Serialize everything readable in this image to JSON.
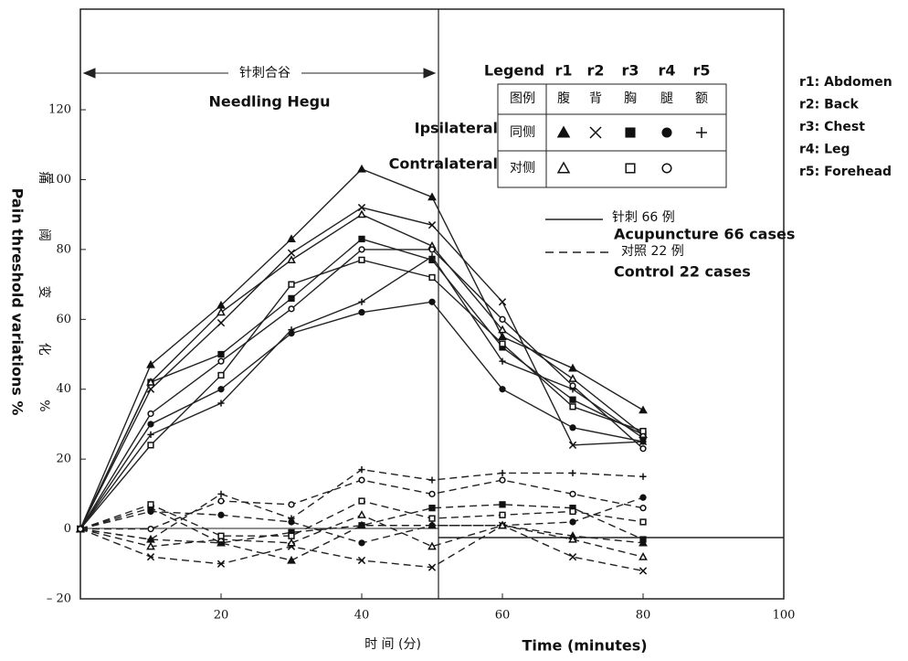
{
  "chart_data": {
    "type": "line",
    "y_label": "Pain threshold variations %",
    "y_label_cn": "痛 阈 变 化 %",
    "x_label": "Time (minutes)",
    "x_label_cn": "时  间  (分)",
    "annotations": {
      "needling_cn": "针刺合谷",
      "needling": "Needling Hegu"
    },
    "xlim": [
      0,
      100
    ],
    "xticks": [
      20,
      40,
      60,
      80,
      100
    ],
    "ylim": [
      -20,
      148.8
    ],
    "yticks": [
      {
        "value": -20,
        "label": "– 20"
      },
      0,
      20,
      40,
      60,
      80,
      100,
      120
    ],
    "x": [
      0,
      10,
      20,
      30,
      40,
      50,
      60,
      70,
      80
    ],
    "series": [
      {
        "group": "acupuncture",
        "marker": "tri-filled",
        "values": [
          0,
          47,
          64,
          83,
          103,
          95,
          55,
          46,
          34
        ]
      },
      {
        "group": "acupuncture",
        "marker": "x",
        "values": [
          0,
          40,
          59,
          79,
          92,
          87,
          65,
          24,
          25
        ]
      },
      {
        "group": "acupuncture",
        "marker": "square-filled",
        "values": [
          0,
          42,
          50,
          66,
          83,
          77,
          52,
          37,
          27
        ]
      },
      {
        "group": "acupuncture",
        "marker": "dot-filled",
        "values": [
          0,
          30,
          40,
          56,
          62,
          65,
          40,
          29,
          25
        ]
      },
      {
        "group": "acupuncture",
        "marker": "plus",
        "values": [
          0,
          27,
          36,
          57,
          65,
          78,
          48,
          40,
          26
        ]
      },
      {
        "group": "acupuncture",
        "marker": "tri-open",
        "values": [
          0,
          42,
          62,
          77,
          90,
          81,
          57,
          43,
          27
        ]
      },
      {
        "group": "acupuncture",
        "marker": "square-open",
        "values": [
          0,
          24,
          44,
          70,
          77,
          72,
          53,
          35,
          28
        ]
      },
      {
        "group": "acupuncture",
        "marker": "dot-open",
        "values": [
          0,
          33,
          48,
          63,
          80,
          80,
          60,
          41,
          23
        ]
      },
      {
        "group": "control",
        "marker": "tri-filled",
        "values": [
          0,
          -3,
          -4,
          -9,
          1,
          1,
          1,
          -2,
          -4
        ]
      },
      {
        "group": "control",
        "marker": "x",
        "values": [
          0,
          -8,
          -10,
          -5,
          -9,
          -11,
          1,
          -8,
          -12
        ]
      },
      {
        "group": "control",
        "marker": "square-filled",
        "values": [
          0,
          6,
          -4,
          -1,
          1,
          6,
          7,
          6,
          -3
        ]
      },
      {
        "group": "control",
        "marker": "dot-filled",
        "values": [
          0,
          5,
          4,
          2,
          -4,
          1,
          1,
          2,
          9
        ]
      },
      {
        "group": "control",
        "marker": "plus",
        "values": [
          0,
          -3,
          10,
          3,
          17,
          14,
          16,
          16,
          15
        ]
      },
      {
        "group": "control",
        "marker": "tri-open",
        "values": [
          0,
          -5,
          -3,
          -4,
          4,
          -5,
          1,
          -3,
          -8
        ]
      },
      {
        "group": "control",
        "marker": "square-open",
        "values": [
          0,
          7,
          -2,
          -2,
          8,
          3,
          4,
          5,
          2
        ]
      },
      {
        "group": "control",
        "marker": "dot-open",
        "values": [
          0,
          0,
          8,
          7,
          14,
          10,
          14,
          10,
          6
        ]
      }
    ],
    "line_legend": [
      {
        "cn": "针刺 66 例",
        "label": "Acupuncture 66 cases"
      },
      {
        "cn": "对照 22 例",
        "label": "Control 22 cases"
      }
    ],
    "legend_table": {
      "header": [
        "Legend",
        "r1",
        "r2",
        "r3",
        "r4",
        "r5"
      ],
      "cn_header": [
        "图例",
        "腹",
        "背",
        "胸",
        "腿",
        "额"
      ],
      "rows": [
        {
          "label": "Ipsilateral",
          "cn": "同侧"
        },
        {
          "label": "Contralateral",
          "cn": "对侧"
        }
      ]
    },
    "notes": [
      "r1: Abdomen",
      "r2: Back",
      "r3: Chest",
      "r4: Leg",
      "r5: Forehead"
    ]
  }
}
